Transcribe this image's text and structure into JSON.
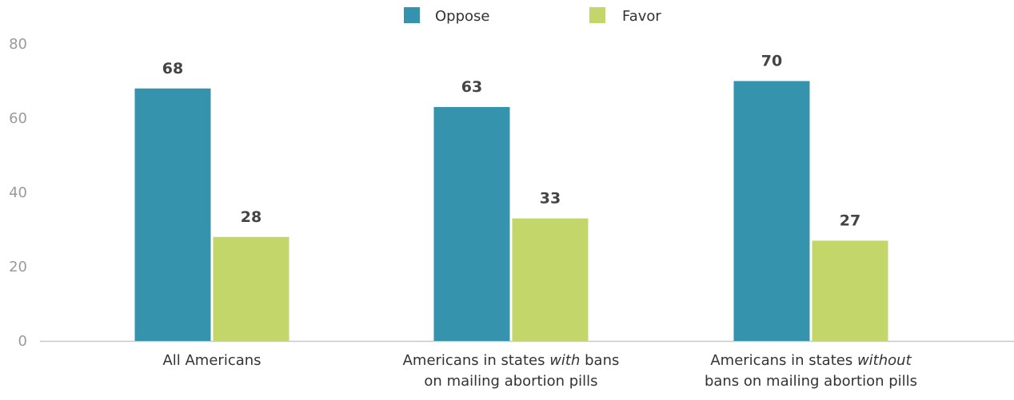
{
  "chart_data": {
    "type": "bar",
    "categories": [
      [
        "All Americans"
      ],
      [
        "Americans in states ",
        {
          "text": "with",
          "italic": true
        },
        " bans",
        "\n",
        "on mailing abortion pills"
      ],
      [
        "Americans in states ",
        {
          "text": "without",
          "italic": true
        },
        "\n",
        "bans on mailing abortion pills"
      ]
    ],
    "series": [
      {
        "name": "Oppose",
        "color": "#3593ad",
        "values": [
          68,
          63,
          70
        ]
      },
      {
        "name": "Favor",
        "color": "#c3d66a",
        "values": [
          28,
          33,
          27
        ]
      }
    ],
    "yticks": [
      0,
      20,
      40,
      60,
      80
    ],
    "ylim": [
      0,
      80
    ],
    "legend_position": "top-center",
    "grid": false,
    "data_labels": true
  },
  "colors": {
    "axis": "#c8c8c8",
    "tick_text": "#9a9a9a",
    "label_text": "#333333",
    "value_text": "#444444"
  }
}
